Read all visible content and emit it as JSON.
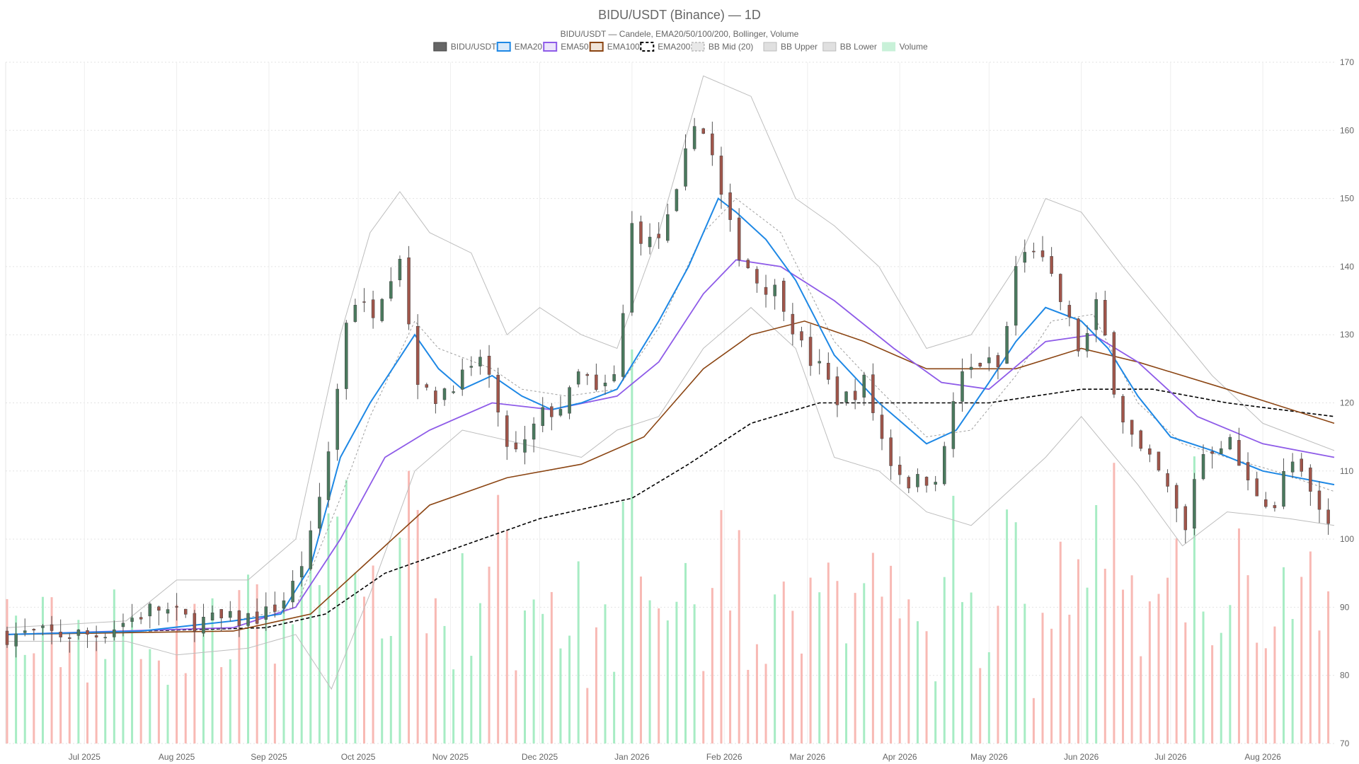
{
  "chart_data": {
    "type": "candlestick",
    "title": "BIDU/USDT (Binance) — 1D",
    "subtitle": "BIDU/USDT — Candele, EMA20/50/100/200, Bollinger, Volume",
    "legend": [
      {
        "name": "BIDU/USDT",
        "color": "#666666",
        "kind": "fill"
      },
      {
        "name": "EMA20",
        "color": "#1e88e5",
        "kind": "line"
      },
      {
        "name": "EMA50",
        "color": "#8e5be8",
        "kind": "line"
      },
      {
        "name": "EMA100",
        "color": "#8b4513",
        "kind": "line"
      },
      {
        "name": "EMA200",
        "color": "#000000",
        "kind": "dash"
      },
      {
        "name": "BB Mid (20)",
        "color": "#9e9e9e",
        "kind": "dashlight"
      },
      {
        "name": "BB Upper",
        "color": "#bdbdbd",
        "kind": "light"
      },
      {
        "name": "BB Lower",
        "color": "#bdbdbd",
        "kind": "light"
      },
      {
        "name": "Volume",
        "color": "#a7ecc4",
        "kind": "vol"
      }
    ],
    "y_axis": {
      "min": 70,
      "max": 170,
      "ticks": [
        "70",
        "80",
        "90",
        "100",
        "110",
        "120",
        "130",
        "140",
        "150",
        "160",
        "170"
      ],
      "position": "right"
    },
    "x_axis": {
      "start": "2025-06-05",
      "end": "2026-08-25",
      "labels": [
        {
          "date": "2025-07-01",
          "text": "Jul 2025"
        },
        {
          "date": "2025-08-01",
          "text": "Aug 2025"
        },
        {
          "date": "2025-09-01",
          "text": "Sep 2025"
        },
        {
          "date": "2025-10-01",
          "text": "Oct 2025"
        },
        {
          "date": "2025-11-01",
          "text": "Nov 2025"
        },
        {
          "date": "2025-12-01",
          "text": "Dec 2025"
        },
        {
          "date": "2026-01-01",
          "text": "Jan 2026"
        },
        {
          "date": "2026-02-01",
          "text": "Feb 2026"
        },
        {
          "date": "2026-03-01",
          "text": "Mar 2026"
        },
        {
          "date": "2026-04-01",
          "text": "Apr 2026"
        },
        {
          "date": "2026-05-01",
          "text": "May 2026"
        },
        {
          "date": "2026-06-01",
          "text": "Jun 2026"
        },
        {
          "date": "2026-07-01",
          "text": "Jul 2026"
        },
        {
          "date": "2026-08-01",
          "text": "Aug 2026"
        }
      ]
    },
    "grid": true,
    "legend_position": "top-center",
    "colors": {
      "up": "#4a7a5e",
      "down": "#a0554a",
      "vol_up": "#a7ecc4",
      "vol_down": "#f8b9b4"
    },
    "price_path": [
      [
        "2025-06-05",
        86
      ],
      [
        "2025-06-20",
        86
      ],
      [
        "2025-07-05",
        86
      ],
      [
        "2025-07-15",
        88
      ],
      [
        "2025-07-25",
        90
      ],
      [
        "2025-08-05",
        88
      ],
      [
        "2025-08-20",
        88
      ],
      [
        "2025-08-31",
        89
      ],
      [
        "2025-09-08",
        92
      ],
      [
        "2025-09-15",
        100
      ],
      [
        "2025-09-20",
        110
      ],
      [
        "2025-09-25",
        125
      ],
      [
        "2025-09-28",
        136
      ],
      [
        "2025-10-05",
        133
      ],
      [
        "2025-10-15",
        142
      ],
      [
        "2025-10-20",
        125
      ],
      [
        "2025-10-25",
        120
      ],
      [
        "2025-11-01",
        123
      ],
      [
        "2025-11-08",
        124
      ],
      [
        "2025-11-12",
        128
      ],
      [
        "2025-11-18",
        115
      ],
      [
        "2025-11-24",
        112
      ],
      [
        "2025-12-01",
        118
      ],
      [
        "2025-12-10",
        120
      ],
      [
        "2025-12-15",
        125
      ],
      [
        "2025-12-20",
        121
      ],
      [
        "2025-12-27",
        124
      ],
      [
        "2026-01-01",
        146
      ],
      [
        "2026-01-08",
        143
      ],
      [
        "2026-01-15",
        148
      ],
      [
        "2026-01-22",
        162
      ],
      [
        "2026-01-27",
        158
      ],
      [
        "2026-02-01",
        148
      ],
      [
        "2026-02-05",
        143
      ],
      [
        "2026-02-12",
        138
      ],
      [
        "2026-02-20",
        136
      ],
      [
        "2026-02-28",
        127
      ],
      [
        "2026-03-05",
        125
      ],
      [
        "2026-03-12",
        120
      ],
      [
        "2026-03-20",
        123
      ],
      [
        "2026-03-28",
        112
      ],
      [
        "2026-04-05",
        108
      ],
      [
        "2026-04-15",
        110
      ],
      [
        "2026-04-20",
        123
      ],
      [
        "2026-04-28",
        126
      ],
      [
        "2026-05-05",
        125
      ],
      [
        "2026-05-10",
        140
      ],
      [
        "2026-05-16",
        143
      ],
      [
        "2026-05-25",
        135
      ],
      [
        "2026-06-01",
        127
      ],
      [
        "2026-06-06",
        134
      ],
      [
        "2026-06-10",
        128
      ],
      [
        "2026-06-13",
        120
      ],
      [
        "2026-06-20",
        113
      ],
      [
        "2026-06-28",
        109
      ],
      [
        "2026-07-06",
        101
      ],
      [
        "2026-07-10",
        112
      ],
      [
        "2026-07-20",
        115
      ],
      [
        "2026-07-27",
        108
      ],
      [
        "2026-08-05",
        105
      ],
      [
        "2026-08-10",
        112
      ],
      [
        "2026-08-15",
        108
      ],
      [
        "2026-08-22",
        102
      ],
      [
        "2026-08-25",
        103
      ]
    ],
    "ema20": [
      [
        "2025-06-05",
        86
      ],
      [
        "2025-07-20",
        86.5
      ],
      [
        "2025-08-20",
        88
      ],
      [
        "2025-09-05",
        89
      ],
      [
        "2025-09-15",
        96
      ],
      [
        "2025-09-25",
        112
      ],
      [
        "2025-10-05",
        120
      ],
      [
        "2025-10-20",
        130
      ],
      [
        "2025-10-28",
        125
      ],
      [
        "2025-11-05",
        122
      ],
      [
        "2025-11-15",
        124
      ],
      [
        "2025-11-25",
        121
      ],
      [
        "2025-12-05",
        119
      ],
      [
        "2025-12-15",
        120
      ],
      [
        "2025-12-27",
        122
      ],
      [
        "2026-01-10",
        132
      ],
      [
        "2026-01-20",
        140
      ],
      [
        "2026-01-30",
        150
      ],
      [
        "2026-02-05",
        148
      ],
      [
        "2026-02-15",
        144
      ],
      [
        "2026-02-25",
        138
      ],
      [
        "2026-03-10",
        127
      ],
      [
        "2026-03-25",
        120
      ],
      [
        "2026-04-10",
        114
      ],
      [
        "2026-04-20",
        116
      ],
      [
        "2026-05-01",
        123
      ],
      [
        "2026-05-10",
        129
      ],
      [
        "2026-05-20",
        134
      ],
      [
        "2026-06-01",
        132
      ],
      [
        "2026-06-10",
        128
      ],
      [
        "2026-06-20",
        121
      ],
      [
        "2026-07-01",
        115
      ],
      [
        "2026-07-15",
        113
      ],
      [
        "2026-08-01",
        110
      ],
      [
        "2026-08-25",
        108
      ]
    ],
    "ema50": [
      [
        "2025-06-05",
        86
      ],
      [
        "2025-08-20",
        87
      ],
      [
        "2025-09-10",
        90
      ],
      [
        "2025-09-25",
        100
      ],
      [
        "2025-10-10",
        112
      ],
      [
        "2025-10-25",
        116
      ],
      [
        "2025-11-15",
        120
      ],
      [
        "2025-12-05",
        119
      ],
      [
        "2025-12-27",
        121
      ],
      [
        "2026-01-10",
        126
      ],
      [
        "2026-01-25",
        136
      ],
      [
        "2026-02-05",
        141
      ],
      [
        "2026-02-20",
        140
      ],
      [
        "2026-03-10",
        135
      ],
      [
        "2026-03-30",
        128
      ],
      [
        "2026-04-15",
        123
      ],
      [
        "2026-05-01",
        122
      ],
      [
        "2026-05-20",
        129
      ],
      [
        "2026-06-05",
        130
      ],
      [
        "2026-06-20",
        126
      ],
      [
        "2026-07-10",
        118
      ],
      [
        "2026-08-01",
        114
      ],
      [
        "2026-08-25",
        112
      ]
    ],
    "ema100": [
      [
        "2025-06-05",
        86
      ],
      [
        "2025-08-20",
        86.5
      ],
      [
        "2025-09-15",
        89
      ],
      [
        "2025-10-05",
        97
      ],
      [
        "2025-10-25",
        105
      ],
      [
        "2025-11-20",
        109
      ],
      [
        "2025-12-15",
        111
      ],
      [
        "2026-01-05",
        115
      ],
      [
        "2026-01-25",
        125
      ],
      [
        "2026-02-10",
        130
      ],
      [
        "2026-02-28",
        132
      ],
      [
        "2026-03-20",
        129
      ],
      [
        "2026-04-10",
        125
      ],
      [
        "2026-05-10",
        125
      ],
      [
        "2026-06-01",
        128
      ],
      [
        "2026-06-20",
        126
      ],
      [
        "2026-07-20",
        122
      ],
      [
        "2026-08-25",
        117
      ]
    ],
    "ema200": [
      [
        "2025-06-05",
        86
      ],
      [
        "2025-08-31",
        87
      ],
      [
        "2025-09-20",
        89
      ],
      [
        "2025-10-10",
        95
      ],
      [
        "2025-11-05",
        99
      ],
      [
        "2025-12-01",
        103
      ],
      [
        "2026-01-01",
        106
      ],
      [
        "2026-01-20",
        111
      ],
      [
        "2026-02-10",
        117
      ],
      [
        "2026-03-05",
        120
      ],
      [
        "2026-04-01",
        120
      ],
      [
        "2026-05-01",
        120
      ],
      [
        "2026-06-01",
        122
      ],
      [
        "2026-06-25",
        122
      ],
      [
        "2026-07-20",
        120
      ],
      [
        "2026-08-25",
        118
      ]
    ],
    "bb_upper": [
      [
        "2025-06-05",
        87
      ],
      [
        "2025-07-15",
        88
      ],
      [
        "2025-08-01",
        94
      ],
      [
        "2025-08-25",
        94
      ],
      [
        "2025-09-10",
        100
      ],
      [
        "2025-09-25",
        130
      ],
      [
        "2025-10-05",
        145
      ],
      [
        "2025-10-15",
        151
      ],
      [
        "2025-10-25",
        145
      ],
      [
        "2025-11-08",
        142
      ],
      [
        "2025-11-20",
        130
      ],
      [
        "2025-12-01",
        134
      ],
      [
        "2025-12-15",
        130
      ],
      [
        "2025-12-27",
        128
      ],
      [
        "2026-01-10",
        145
      ],
      [
        "2026-01-25",
        168
      ],
      [
        "2026-02-10",
        165
      ],
      [
        "2026-02-25",
        150
      ],
      [
        "2026-03-10",
        146
      ],
      [
        "2026-03-25",
        140
      ],
      [
        "2026-04-10",
        128
      ],
      [
        "2026-04-25",
        130
      ],
      [
        "2026-05-10",
        140
      ],
      [
        "2026-05-20",
        150
      ],
      [
        "2026-06-01",
        148
      ],
      [
        "2026-06-15",
        140
      ],
      [
        "2026-06-30",
        132
      ],
      [
        "2026-07-15",
        124
      ],
      [
        "2026-08-01",
        117
      ],
      [
        "2026-08-25",
        113
      ]
    ],
    "bb_lower": [
      [
        "2025-06-05",
        85
      ],
      [
        "2025-07-15",
        85
      ],
      [
        "2025-08-01",
        83
      ],
      [
        "2025-08-25",
        84
      ],
      [
        "2025-09-10",
        86
      ],
      [
        "2025-09-22",
        78
      ],
      [
        "2025-10-05",
        92
      ],
      [
        "2025-10-20",
        110
      ],
      [
        "2025-11-05",
        116
      ],
      [
        "2025-11-25",
        114
      ],
      [
        "2025-12-15",
        112
      ],
      [
        "2025-12-27",
        116
      ],
      [
        "2026-01-10",
        118
      ],
      [
        "2026-01-25",
        128
      ],
      [
        "2026-02-10",
        134
      ],
      [
        "2026-02-25",
        128
      ],
      [
        "2026-03-10",
        112
      ],
      [
        "2026-03-25",
        110
      ],
      [
        "2026-04-10",
        104
      ],
      [
        "2026-04-25",
        102
      ],
      [
        "2026-05-05",
        106
      ],
      [
        "2026-05-20",
        112
      ],
      [
        "2026-06-01",
        118
      ],
      [
        "2026-06-20",
        108
      ],
      [
        "2026-07-05",
        99
      ],
      [
        "2026-07-20",
        104
      ],
      [
        "2026-08-10",
        103
      ],
      [
        "2026-08-25",
        102
      ]
    ],
    "bb_mid": [
      [
        "2025-06-05",
        86
      ],
      [
        "2025-07-20",
        86.5
      ],
      [
        "2025-08-20",
        88
      ],
      [
        "2025-09-10",
        90
      ],
      [
        "2025-09-25",
        106
      ],
      [
        "2025-10-05",
        118
      ],
      [
        "2025-10-20",
        132
      ],
      [
        "2025-10-28",
        128
      ],
      [
        "2025-11-15",
        125
      ],
      [
        "2025-11-25",
        122
      ],
      [
        "2025-12-10",
        121
      ],
      [
        "2025-12-27",
        122
      ],
      [
        "2026-01-10",
        131
      ],
      [
        "2026-01-25",
        145
      ],
      [
        "2026-02-05",
        150
      ],
      [
        "2026-02-20",
        145
      ],
      [
        "2026-03-10",
        129
      ],
      [
        "2026-03-25",
        122
      ],
      [
        "2026-04-10",
        115
      ],
      [
        "2026-04-25",
        116
      ],
      [
        "2026-05-10",
        124
      ],
      [
        "2026-05-22",
        132
      ],
      [
        "2026-06-05",
        133
      ],
      [
        "2026-06-20",
        120
      ],
      [
        "2026-07-05",
        114
      ],
      [
        "2026-07-20",
        112
      ],
      [
        "2026-08-05",
        110
      ],
      [
        "2026-08-25",
        107
      ]
    ]
  }
}
